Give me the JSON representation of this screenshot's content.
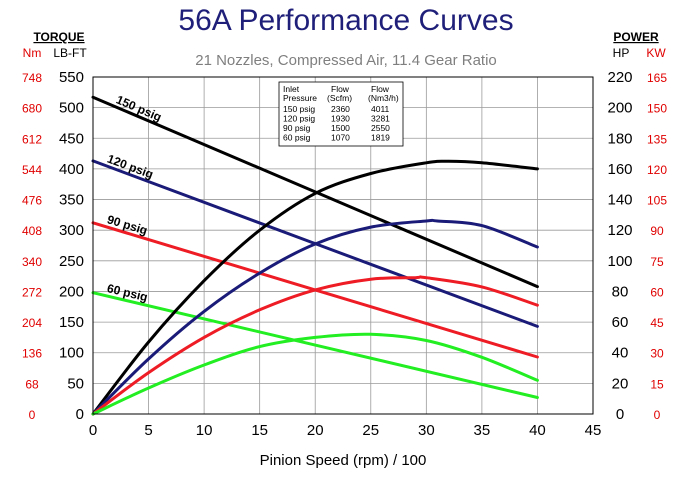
{
  "chart_data": {
    "type": "line",
    "title": "56A Performance Curves",
    "subtitle": "21 Nozzles, Compressed Air, 11.4 Gear Ratio",
    "xlabel": "Pinion Speed (rpm) / 100",
    "xlim": [
      0,
      45
    ],
    "x_ticks": [
      "0",
      "5",
      "10",
      "15",
      "20",
      "25",
      "30",
      "35",
      "40",
      "45"
    ],
    "left_axis": {
      "heading": "TORQUE",
      "unit_lbft": "LB-FT",
      "unit_nm": "Nm",
      "ylim": [
        0,
        550
      ],
      "ticks_lbft": [
        "0",
        "50",
        "100",
        "150",
        "200",
        "250",
        "300",
        "350",
        "400",
        "450",
        "500",
        "550"
      ],
      "ticks_nm": [
        "0",
        "68",
        "136",
        "204",
        "272",
        "340",
        "408",
        "476",
        "544",
        "612",
        "680",
        "748"
      ]
    },
    "right_axis": {
      "heading": "POWER",
      "unit_hp": "HP",
      "unit_kw": "KW",
      "ylim": [
        0,
        220
      ],
      "ticks_hp": [
        "0",
        "20",
        "40",
        "60",
        "80",
        "100",
        "120",
        "140",
        "160",
        "180",
        "200",
        "220"
      ],
      "ticks_kw": [
        "0",
        "15",
        "30",
        "45",
        "60",
        "75",
        "90",
        "105",
        "120",
        "135",
        "150",
        "165"
      ]
    },
    "grid": true,
    "colors": {
      "150 psig": "#000000",
      "120 psig": "#1a1a78",
      "90 psig": "#ee1c24",
      "60 psig": "#22ee22"
    },
    "torque_series": [
      {
        "name": "150 psig",
        "x": [
          0,
          40
        ],
        "y": [
          517,
          208
        ]
      },
      {
        "name": "120 psig",
        "x": [
          0,
          40
        ],
        "y": [
          413,
          143
        ]
      },
      {
        "name": "90 psig",
        "x": [
          0,
          40
        ],
        "y": [
          312,
          93
        ]
      },
      {
        "name": "60 psig",
        "x": [
          0,
          40
        ],
        "y": [
          198,
          27
        ]
      }
    ],
    "power_series": [
      {
        "name": "150 psig",
        "x": [
          0,
          5,
          10,
          15,
          20,
          25,
          30,
          32,
          35,
          40
        ],
        "y": [
          0,
          47,
          87,
          120,
          144,
          157,
          164,
          165,
          164,
          160
        ]
      },
      {
        "name": "120 psig",
        "x": [
          0,
          5,
          10,
          15,
          20,
          25,
          30,
          31,
          35,
          40
        ],
        "y": [
          0,
          36,
          67,
          92,
          111,
          122,
          126,
          126,
          123,
          109
        ]
      },
      {
        "name": "90 psig",
        "x": [
          0,
          5,
          10,
          15,
          20,
          25,
          29,
          30,
          35,
          40
        ],
        "y": [
          0,
          27,
          50,
          68,
          81,
          88,
          89,
          89,
          83,
          71
        ]
      },
      {
        "name": "60 psig",
        "x": [
          0,
          5,
          10,
          15,
          20,
          25,
          30,
          35,
          40
        ],
        "y": [
          0,
          17,
          32,
          44,
          50,
          52,
          48,
          37,
          22
        ]
      }
    ],
    "flow_table": {
      "headers": [
        "Inlet Pressure",
        "Flow (Scfm)",
        "Flow (Nm3/h)"
      ],
      "rows": [
        [
          "150 psig",
          "2360",
          "4011"
        ],
        [
          "120 psig",
          "1930",
          "3281"
        ],
        [
          "90 psig",
          "1500",
          "2550"
        ],
        [
          "60 psig",
          "1070",
          "1819"
        ]
      ]
    }
  }
}
